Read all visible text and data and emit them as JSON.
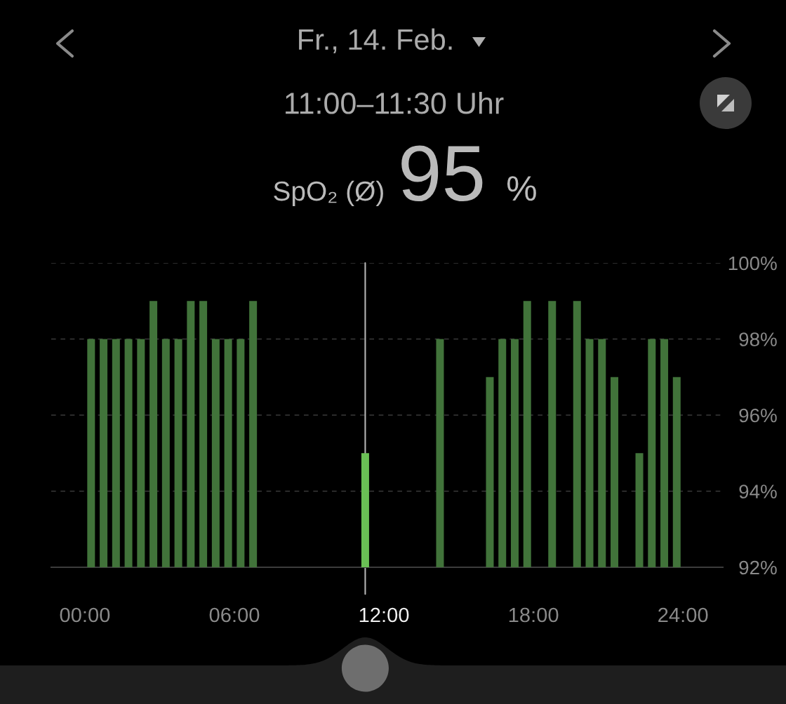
{
  "chart_data": {
    "type": "bar",
    "title": "Fr., 14. Feb.",
    "subtitle": "11:00–11:30 Uhr",
    "annotations": [
      "SpO₂ (Ø)",
      "95",
      "%"
    ],
    "x": [
      0.25,
      0.75,
      1.25,
      1.75,
      2.25,
      2.75,
      3.25,
      3.75,
      4.25,
      4.75,
      5.25,
      5.75,
      6.25,
      6.75,
      11.25,
      14.25,
      16.25,
      16.75,
      17.25,
      17.75,
      18.75,
      19.75,
      20.25,
      20.75,
      21.25,
      22.25,
      22.75,
      23.25,
      23.75
    ],
    "values": [
      98,
      98,
      98,
      98,
      98,
      99,
      98,
      98,
      99,
      99,
      98,
      98,
      98,
      99,
      95,
      98,
      97,
      98,
      98,
      99,
      99,
      99,
      98,
      98,
      97,
      95,
      98,
      98,
      97
    ],
    "colors": [
      "#41733a",
      "#41733a",
      "#41733a",
      "#41733a",
      "#41733a",
      "#41733a",
      "#41733a",
      "#41733a",
      "#41733a",
      "#41733a",
      "#41733a",
      "#41733a",
      "#41733a",
      "#41733a",
      "#6abf55",
      "#41733a",
      "#41733a",
      "#41733a",
      "#41733a",
      "#41733a",
      "#41733a",
      "#41733a",
      "#41733a",
      "#41733a",
      "#41733a",
      "#41733a",
      "#41733a",
      "#41733a",
      "#41733a"
    ],
    "xlim": [
      -1.35,
      25.6
    ],
    "xticks": [
      {
        "value": 0,
        "label": "00:00"
      },
      {
        "value": 6,
        "label": "06:00"
      },
      {
        "value": 12,
        "label": "12:00"
      },
      {
        "value": 18,
        "label": "18:00"
      },
      {
        "value": 24,
        "label": "24:00"
      }
    ],
    "ylim": [
      92,
      100
    ],
    "yticks": [
      {
        "value": 92,
        "label": "92%"
      },
      {
        "value": 94,
        "label": "94%"
      },
      {
        "value": 96,
        "label": "96%"
      },
      {
        "value": 98,
        "label": "98%"
      },
      {
        "value": 100,
        "label": "100%"
      }
    ],
    "grid": "y",
    "ref_lines": [
      {
        "axis": "x",
        "value": 11.25,
        "color": "#b5b5b5"
      }
    ]
  }
}
